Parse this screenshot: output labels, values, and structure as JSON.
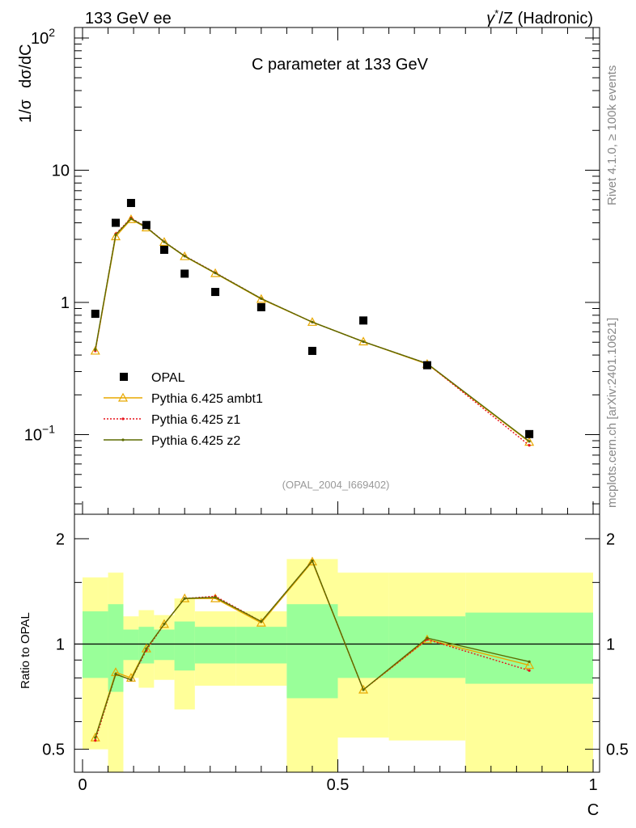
{
  "header": {
    "left": "133 GeV ee",
    "right_prefix": "γ",
    "right_sup": "*",
    "right_suffix": "/Z (Hadronic)"
  },
  "side_text": {
    "rivet": "Rivet 4.1.0, ≥ 100k events",
    "mcplots": "mcplots.cern.ch [arXiv:2401.10621]"
  },
  "colors": {
    "data": "#000000",
    "ambt1": "#e8a800",
    "z1": "#e8141c",
    "z2": "#5c6b00",
    "band_inner": "#99ff99",
    "band_outer": "#ffff99"
  },
  "chart_data": [
    {
      "type": "line",
      "title": "C parameter at 133 GeV",
      "analysis_id": "(OPAL_2004_I669402)",
      "xlabel": "",
      "ylabel_parts": [
        "1/σ",
        "dσ/dC"
      ],
      "yscale": "log",
      "xlim": [
        0,
        1
      ],
      "ylim": [
        0.025,
        120
      ],
      "y_ticks": [
        {
          "value": 0.1,
          "base": "10",
          "exp": "−1"
        },
        {
          "value": 1,
          "base": "1",
          "exp": ""
        },
        {
          "value": 10,
          "base": "10",
          "exp": ""
        },
        {
          "value": 100,
          "base": "10",
          "exp": "2"
        }
      ],
      "series": [
        {
          "name": "OPAL",
          "style": "square",
          "x": [
            0.025,
            0.065,
            0.095,
            0.125,
            0.16,
            0.2,
            0.26,
            0.35,
            0.45,
            0.55,
            0.675,
            0.875
          ],
          "values": [
            0.82,
            4.0,
            5.65,
            3.85,
            2.5,
            1.65,
            1.2,
            0.92,
            0.43,
            0.73,
            0.335,
            0.101
          ]
        },
        {
          "name": "Pythia 6.425 ambt1",
          "style": "triangle",
          "x": [
            0.025,
            0.065,
            0.095,
            0.125,
            0.16,
            0.2,
            0.26,
            0.35,
            0.45,
            0.55,
            0.675,
            0.875
          ],
          "values": [
            0.43,
            3.15,
            4.25,
            3.68,
            2.86,
            2.23,
            1.66,
            1.06,
            0.71,
            0.505,
            0.342,
            0.088
          ]
        },
        {
          "name": "Pythia 6.425 z1",
          "style": "dot-dotted",
          "x": [
            0.025,
            0.065,
            0.095,
            0.125,
            0.16,
            0.2,
            0.26,
            0.35,
            0.45,
            0.55,
            0.675,
            0.875
          ],
          "values": [
            0.43,
            3.3,
            4.35,
            3.72,
            2.88,
            2.25,
            1.68,
            1.07,
            0.71,
            0.505,
            0.345,
            0.083
          ]
        },
        {
          "name": "Pythia 6.425 z2",
          "style": "dot-solid",
          "x": [
            0.025,
            0.065,
            0.095,
            0.125,
            0.16,
            0.2,
            0.26,
            0.35,
            0.45,
            0.55,
            0.675,
            0.875
          ],
          "values": [
            0.44,
            3.25,
            4.3,
            3.7,
            2.87,
            2.24,
            1.67,
            1.07,
            0.71,
            0.505,
            0.345,
            0.089
          ]
        }
      ]
    },
    {
      "type": "line",
      "title": "",
      "xlabel": "C",
      "ylabel": "Ratio to OPAL",
      "yscale": "log",
      "xlim": [
        0,
        1
      ],
      "ylim": [
        0.43,
        2.35
      ],
      "x_ticks": [
        "0",
        "0.5",
        "1"
      ],
      "y_ticks": [
        "0.5",
        "1",
        "2"
      ],
      "band_edges": [
        0,
        0.05,
        0.08,
        0.11,
        0.14,
        0.18,
        0.22,
        0.3,
        0.4,
        0.5,
        0.6,
        0.75,
        1.0
      ],
      "band_inner": [
        [
          0.8,
          1.24
        ],
        [
          0.73,
          1.3
        ],
        [
          0.9,
          1.1
        ],
        [
          0.88,
          1.12
        ],
        [
          0.9,
          1.1
        ],
        [
          0.84,
          1.16
        ],
        [
          0.88,
          1.12
        ],
        [
          0.88,
          1.12
        ],
        [
          0.7,
          1.3
        ],
        [
          0.8,
          1.2
        ],
        [
          0.8,
          1.2
        ],
        [
          0.77,
          1.23
        ]
      ],
      "band_outer": [
        [
          0.5,
          1.55
        ],
        [
          0.4,
          1.6
        ],
        [
          0.8,
          1.2
        ],
        [
          0.75,
          1.25
        ],
        [
          0.79,
          1.21
        ],
        [
          0.65,
          1.35
        ],
        [
          0.76,
          1.24
        ],
        [
          0.76,
          1.24
        ],
        [
          0.4,
          1.75
        ],
        [
          0.54,
          1.6
        ],
        [
          0.53,
          1.6
        ],
        [
          0.43,
          1.6
        ]
      ],
      "series": [
        {
          "name": "Pythia 6.425 ambt1",
          "x": [
            0.025,
            0.065,
            0.095,
            0.125,
            0.16,
            0.2,
            0.26,
            0.35,
            0.45,
            0.55,
            0.675,
            0.875
          ],
          "values": [
            0.54,
            0.83,
            0.8,
            0.97,
            1.14,
            1.35,
            1.35,
            1.15,
            1.72,
            0.74,
            1.03,
            0.87
          ]
        },
        {
          "name": "Pythia 6.425 z1",
          "x": [
            0.025,
            0.065,
            0.095,
            0.125,
            0.16,
            0.2,
            0.26,
            0.35,
            0.45,
            0.55,
            0.675,
            0.875
          ],
          "values": [
            0.53,
            0.82,
            0.79,
            0.96,
            1.14,
            1.35,
            1.37,
            1.16,
            1.73,
            0.74,
            1.03,
            0.84
          ]
        },
        {
          "name": "Pythia 6.425 z2",
          "x": [
            0.025,
            0.065,
            0.095,
            0.125,
            0.16,
            0.2,
            0.26,
            0.35,
            0.45,
            0.55,
            0.675,
            0.875
          ],
          "values": [
            0.54,
            0.82,
            0.79,
            0.97,
            1.14,
            1.35,
            1.36,
            1.16,
            1.73,
            0.74,
            1.04,
            0.89
          ]
        }
      ]
    }
  ]
}
